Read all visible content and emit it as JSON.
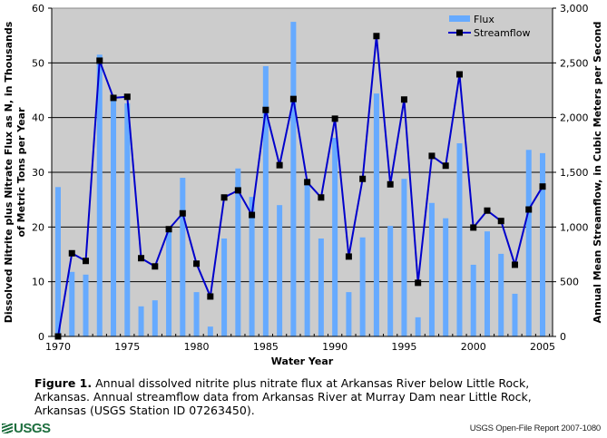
{
  "chart_data": {
    "type": "bar",
    "title": "",
    "xlabel": "Water Year",
    "ylabel": "Dissolved Nitrite plus Nitrate Flux as N, in Thousands of Metric Tons per Year",
    "ylabel_lines": [
      "Dissolved Nitrite plus Nitrate Flux as N, in Thousands",
      "of Metric Tons per Year"
    ],
    "y2label": "Annual Mean Streamflow, in Cubic Meters per Second",
    "ylim": [
      0,
      60
    ],
    "y2lim": [
      0,
      3000
    ],
    "yticks": [
      0,
      10,
      20,
      30,
      40,
      50,
      60
    ],
    "y2ticks": [
      "0",
      "500",
      "1,000",
      "1,500",
      "2,000",
      "2,500",
      "3,000"
    ],
    "xlim": [
      1970,
      2005
    ],
    "xticks": [
      1970,
      1975,
      1980,
      1985,
      1990,
      1995,
      2000,
      2005
    ],
    "grid": true,
    "legend_position": "top-right",
    "plot_background": "#cccccc",
    "categories": [
      1970,
      1971,
      1972,
      1973,
      1974,
      1975,
      1976,
      1977,
      1978,
      1979,
      1980,
      1981,
      1982,
      1983,
      1984,
      1985,
      1986,
      1987,
      1988,
      1989,
      1990,
      1991,
      1992,
      1993,
      1994,
      1995,
      1996,
      1997,
      1998,
      1999,
      2000,
      2001,
      2002,
      2003,
      2004,
      2005
    ],
    "series": [
      {
        "name": "Flux",
        "type": "bar",
        "axis": "left",
        "color": "#66aaff",
        "values": [
          27.3,
          11.8,
          11.3,
          51.5,
          43.3,
          42.6,
          5.5,
          6.6,
          19.8,
          29.0,
          8.1,
          1.8,
          17.9,
          30.7,
          25.5,
          49.4,
          24.0,
          57.5,
          28.8,
          17.9,
          36.3,
          8.1,
          18.1,
          44.4,
          20.2,
          28.8,
          3.5,
          24.4,
          21.6,
          35.3,
          13.1,
          19.2,
          15.1,
          7.8,
          34.1,
          33.5
        ]
      },
      {
        "name": "Streamflow",
        "type": "line",
        "axis": "right",
        "color": "#0000cc",
        "marker_color": "#000000",
        "values": [
          0,
          760,
          690,
          2520,
          2180,
          2190,
          715,
          640,
          980,
          1125,
          665,
          365,
          1270,
          1335,
          1110,
          2070,
          1565,
          2170,
          1410,
          1270,
          1990,
          730,
          1440,
          2745,
          1390,
          2165,
          490,
          1650,
          1560,
          2395,
          995,
          1150,
          1055,
          655,
          1160,
          1370
        ]
      }
    ]
  },
  "caption": {
    "label": "Figure 1.",
    "text": "Annual dissolved nitrite plus nitrate flux at Arkansas River below Little Rock, Arkansas. Annual streamflow data from Arkansas River at Murray Dam near Little Rock, Arkansas (USGS Station ID 07263450)."
  },
  "footer": {
    "logo_text": "USGS",
    "report": "USGS Open-File Report 2007-1080"
  }
}
